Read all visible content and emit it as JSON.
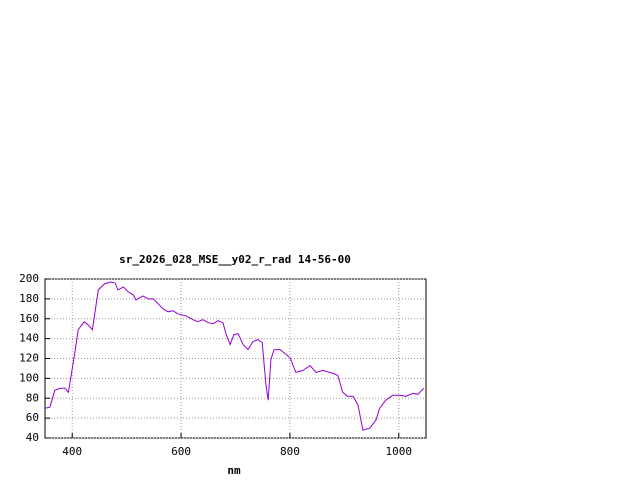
{
  "chart_data": {
    "type": "line",
    "title": "sr_2026_028_MSE__y02_r_rad 14-56-00",
    "xlabel": "nm",
    "x": [
      350,
      359,
      368,
      378,
      387,
      393,
      396,
      404,
      411,
      422,
      429,
      437,
      448,
      459,
      470,
      479,
      484,
      494,
      503,
      512,
      517,
      530,
      539,
      549,
      558,
      567,
      576,
      585,
      594,
      609,
      622,
      631,
      640,
      650,
      659,
      668,
      677,
      683,
      690,
      697,
      705,
      714,
      723,
      732,
      741,
      749,
      756,
      760,
      765,
      771,
      782,
      793,
      800,
      811,
      824,
      837,
      848,
      861,
      879,
      888,
      897,
      906,
      916,
      925,
      934,
      947,
      958,
      965,
      976,
      989,
      1002,
      1013,
      1026,
      1035,
      1046
    ],
    "series": [
      {
        "name": "sr_2026_028_MSE__y02_r_rad 14-56-00",
        "color": "#9400d3",
        "values": [
          70,
          71,
          88,
          90,
          90,
          86,
          96,
          123,
          149,
          157,
          154,
          149,
          189,
          195,
          197,
          196,
          189,
          192,
          187,
          184,
          179,
          183,
          180,
          180,
          175,
          170,
          167,
          168,
          165,
          163,
          159,
          157,
          159,
          156,
          155,
          158,
          156,
          144,
          134,
          144,
          145,
          134,
          129,
          137,
          139,
          136,
          93,
          78,
          119,
          129,
          129,
          124,
          121,
          106,
          108,
          113,
          106,
          108,
          105,
          103,
          86,
          82,
          82,
          73,
          48,
          50,
          58,
          70,
          78,
          83,
          83,
          82,
          85,
          84,
          90
        ]
      }
    ],
    "xlim": [
      350,
      1050
    ],
    "xticks": [
      400,
      600,
      800,
      1000
    ],
    "ylim": [
      40,
      200
    ],
    "yticks": [
      40,
      60,
      80,
      100,
      120,
      140,
      160,
      180,
      200
    ],
    "grid": true
  }
}
